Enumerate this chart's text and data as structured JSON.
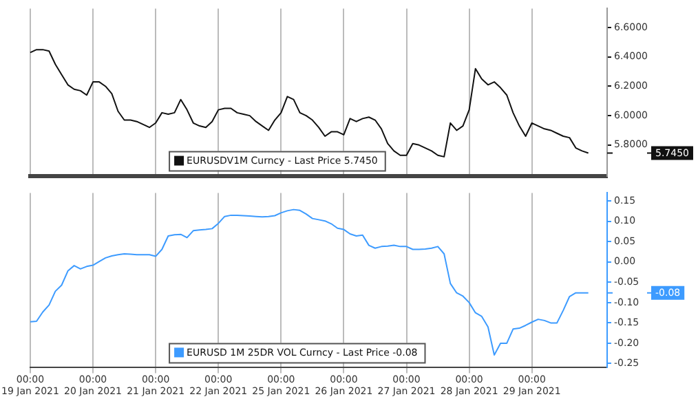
{
  "chart_data": [
    {
      "type": "line",
      "categories": [
        null,
        null,
        null,
        null,
        null,
        null,
        null,
        null,
        null,
        null,
        null,
        null,
        null,
        null,
        null,
        null,
        null,
        null,
        null,
        null,
        null,
        null,
        null,
        null,
        null,
        null,
        null,
        null,
        null,
        null,
        null,
        null,
        null,
        null,
        null,
        null,
        null,
        null,
        null,
        null,
        null,
        null,
        null,
        null,
        null,
        null,
        null,
        null,
        null,
        null,
        null,
        null,
        null,
        null,
        null,
        null,
        null,
        null,
        null,
        null,
        null,
        null,
        null,
        null,
        null,
        null,
        null,
        null,
        null,
        null,
        null,
        null,
        null,
        null,
        null,
        null,
        null,
        null,
        null,
        null,
        null,
        null,
        null,
        null,
        null,
        null,
        null,
        null,
        null,
        null,
        null,
        null,
        null
      ],
      "series": [
        {
          "name": "EURUSDV1M Curncy - Last Price 5.7450",
          "color": "#111111",
          "values": [
            6.43,
            6.45,
            6.45,
            6.44,
            6.35,
            6.28,
            6.21,
            6.18,
            6.17,
            6.14,
            6.23,
            6.23,
            6.2,
            6.15,
            6.03,
            5.97,
            5.97,
            5.96,
            5.94,
            5.92,
            5.95,
            6.02,
            6.01,
            6.02,
            6.11,
            6.04,
            5.95,
            5.93,
            5.92,
            5.96,
            6.04,
            6.05,
            6.05,
            6.02,
            6.01,
            6.0,
            5.96,
            5.93,
            5.9,
            5.97,
            6.02,
            6.13,
            6.11,
            6.02,
            6.0,
            5.97,
            5.92,
            5.86,
            5.89,
            5.89,
            5.87,
            5.98,
            5.96,
            5.98,
            5.99,
            5.97,
            5.91,
            5.81,
            5.76,
            5.73,
            5.73,
            5.81,
            5.8,
            5.78,
            5.76,
            5.73,
            5.72,
            5.95,
            5.9,
            5.93,
            6.04,
            6.32,
            6.25,
            6.21,
            6.23,
            6.19,
            6.14,
            6.02,
            5.93,
            5.86,
            5.95,
            5.93,
            5.91,
            5.9,
            5.88,
            5.86,
            5.85,
            5.78,
            5.76,
            5.745,
            null,
            null,
            null
          ]
        }
      ],
      "ylim": [
        5.59,
        6.73
      ],
      "yticks": [
        {
          "value": 5.8,
          "label": "5.8000"
        },
        {
          "value": 6.0,
          "label": "6.0000"
        },
        {
          "value": 6.2,
          "label": "6.2000"
        },
        {
          "value": 6.4,
          "label": "6.4000"
        },
        {
          "value": 6.6,
          "label": "6.6000"
        }
      ],
      "tick_labels": "y",
      "grid": "x",
      "legend": "bottom",
      "marker": "none",
      "annotations": [
        "5.7450"
      ]
    },
    {
      "type": "line",
      "categories": [
        "00:00\n19 Jan 2021",
        null,
        null,
        null,
        null,
        null,
        null,
        null,
        null,
        null,
        "00:00\n20 Jan 2021",
        null,
        null,
        null,
        null,
        null,
        null,
        null,
        null,
        null,
        "00:00\n21 Jan 2021",
        null,
        null,
        null,
        null,
        null,
        null,
        null,
        null,
        null,
        "00:00\n22 Jan 2021",
        null,
        null,
        null,
        null,
        null,
        null,
        null,
        null,
        null,
        "00:00\n25 Jan 2021",
        null,
        null,
        null,
        null,
        null,
        null,
        null,
        null,
        null,
        "00:00\n26 Jan 2021",
        null,
        null,
        null,
        null,
        null,
        null,
        null,
        null,
        null,
        "00:00\n27 Jan 2021",
        null,
        null,
        null,
        null,
        null,
        null,
        null,
        null,
        null,
        "00:00\n28 Jan 2021",
        null,
        null,
        null,
        null,
        null,
        null,
        null,
        null,
        null,
        "00:00\n29 Jan 2021",
        null,
        null,
        null,
        null,
        null,
        null,
        null,
        null,
        null,
        null,
        null,
        null
      ],
      "series": [
        {
          "name": "EURUSD 1M 25DR VOL Curncy - Last Price -0.08",
          "color": "#3d9bff",
          "values": [
            -0.147,
            -0.146,
            -0.123,
            -0.106,
            -0.072,
            -0.057,
            -0.022,
            -0.009,
            -0.017,
            -0.011,
            -0.008,
            0.001,
            0.01,
            0.015,
            0.018,
            0.02,
            0.019,
            0.018,
            0.018,
            0.018,
            0.014,
            0.031,
            0.064,
            0.067,
            0.068,
            0.06,
            0.077,
            0.079,
            0.08,
            0.082,
            0.095,
            0.112,
            0.115,
            0.115,
            0.114,
            0.113,
            0.112,
            0.111,
            0.112,
            0.114,
            0.121,
            0.126,
            0.129,
            0.127,
            0.118,
            0.107,
            0.104,
            0.101,
            0.094,
            0.083,
            0.08,
            0.069,
            0.064,
            0.066,
            0.041,
            0.034,
            0.038,
            0.039,
            0.041,
            0.038,
            0.038,
            0.031,
            0.031,
            0.032,
            0.034,
            0.038,
            0.02,
            -0.053,
            -0.076,
            -0.084,
            -0.1,
            -0.125,
            -0.134,
            -0.16,
            -0.229,
            -0.2,
            -0.2,
            -0.165,
            -0.163,
            -0.156,
            -0.148,
            -0.141,
            -0.144,
            -0.15,
            -0.15,
            -0.119,
            -0.085,
            -0.076,
            -0.076,
            -0.076,
            null,
            null,
            null
          ]
        }
      ],
      "ylim": [
        -0.26,
        0.17
      ],
      "yticks": [
        {
          "value": -0.25,
          "label": "-0.25"
        },
        {
          "value": -0.2,
          "label": "-0.20"
        },
        {
          "value": -0.15,
          "label": "-0.15"
        },
        {
          "value": -0.1,
          "label": "-0.10"
        },
        {
          "value": -0.05,
          "label": "-0.05"
        },
        {
          "value": 0,
          "label": "0.00"
        },
        {
          "value": 0.05,
          "label": "0.05"
        },
        {
          "value": 0.1,
          "label": "0.10"
        },
        {
          "value": 0.15,
          "label": "0.15"
        }
      ],
      "grid": "x",
      "legend": "bottom",
      "marker": "none",
      "annotations": [
        "-0.08"
      ]
    }
  ]
}
